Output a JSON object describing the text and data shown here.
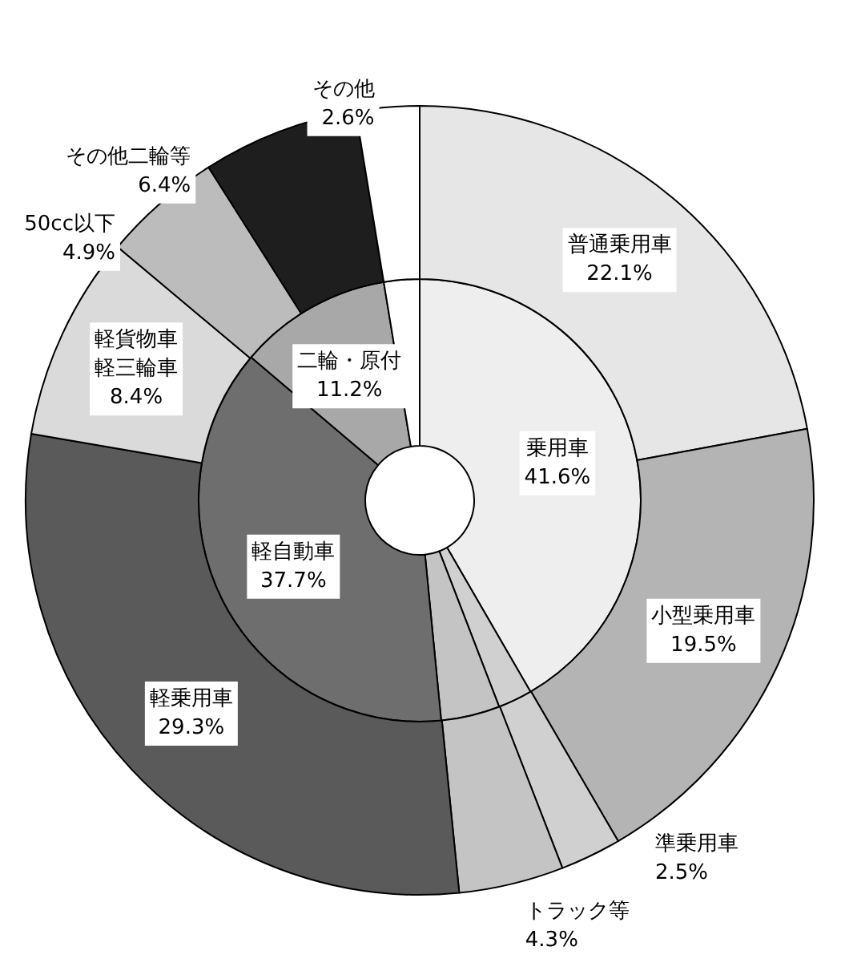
{
  "chart_data": [
    {
      "type": "donut",
      "categories": [
        "乗用車",
        null,
        null,
        "軽自動車",
        "二輪・原付",
        null
      ],
      "values": [
        41.6,
        2.5,
        4.3,
        37.7,
        11.2,
        2.6
      ],
      "value_labels": [
        "41.6%",
        null,
        null,
        "37.7%",
        "11.2%",
        null
      ],
      "colors": [
        "#eeeeee",
        "#d0d0d0",
        "#c4c4c4",
        "#6e6e6e",
        "#a8a8a8",
        "#ffffff"
      ]
    },
    {
      "type": "donut",
      "categories": [
        "普通乗用車",
        "小型乗用車",
        "準乗用車",
        "トラック等",
        "軽乗用車",
        "軽貨物車軽三輪車",
        "50cc以下",
        "その他二輪等",
        "その他"
      ],
      "values": [
        22.1,
        19.5,
        2.5,
        4.3,
        29.3,
        8.4,
        4.9,
        6.4,
        2.6
      ],
      "value_labels": [
        "22.1%",
        "19.5%",
        "2.5%",
        "4.3%",
        "29.3%",
        "8.4%",
        "4.9%",
        "6.4%",
        "2.6%"
      ],
      "colors": [
        "#e6e6e6",
        "#b4b4b4",
        "#d0d0d0",
        "#c4c4c4",
        "#5a5a5a",
        "#dadada",
        "#bcbcbc",
        "#1e1e1e",
        "#ffffff"
      ]
    }
  ]
}
